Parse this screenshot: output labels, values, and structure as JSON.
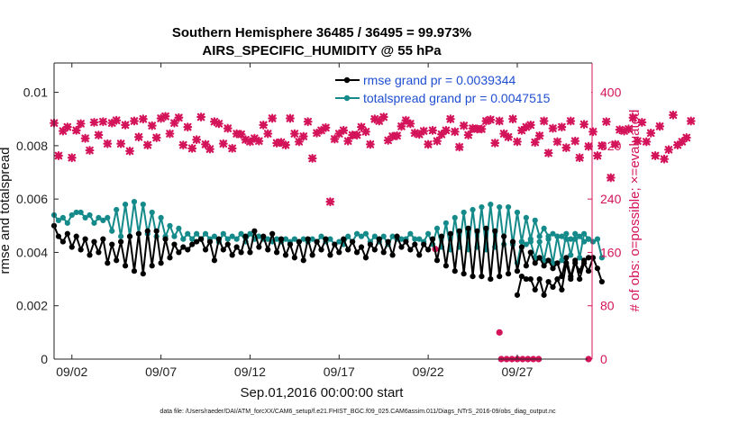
{
  "chart_data": {
    "type": "line",
    "title": "Southern Hemisphere 36485 / 36495 = 99.973%",
    "subtitle": "AIRS_SPECIFIC_HUMIDITY @ 55 hPa",
    "xlabel": "Sep.01,2016 00:00:00 start",
    "ylabel": "rmse and totalspread",
    "ylabel_right": "# of obs: o=possible; ×=evaluated",
    "footnote": "data file: /Users/raeder/DAI/ATM_forcXX/CAM6_setup/f.e21.FHIST_BGC.f09_025.CAM6assim.011/Diags_NTrS_2016-09/obs_diag_output.nc",
    "xlim": [
      1,
      31.2
    ],
    "ylim": [
      0,
      0.0111
    ],
    "ylim_right": [
      0,
      444
    ],
    "x_ticks": [
      2,
      7,
      12,
      17,
      22,
      27
    ],
    "x_tick_labels": [
      "09/02",
      "09/07",
      "09/12",
      "09/17",
      "09/22",
      "09/27"
    ],
    "y_ticks": [
      0,
      0.002,
      0.004,
      0.006,
      0.008,
      0.01
    ],
    "y_tick_labels": [
      "0",
      "0.002",
      "0.004",
      "0.006",
      "0.008",
      "0.01"
    ],
    "y_right_ticks": [
      0,
      80,
      160,
      240,
      320,
      400
    ],
    "y_right_tick_labels": [
      "0",
      "80",
      "160",
      "240",
      "320",
      "400"
    ],
    "legend": [
      "rmse grand pr = 0.0039344",
      "totalspread grand pr = 0.0047515"
    ],
    "legend_placement": "top-right",
    "grid": false,
    "series": [
      {
        "name": "rmse grand pr = 0.0039344",
        "color": "#000000",
        "axis": "left",
        "segments": [
          {
            "x_start": 1.0,
            "dx": 0.25,
            "values": [
              0.005,
              0.0046,
              0.0044,
              0.0047,
              0.0042,
              0.0046,
              0.0041,
              0.0045,
              0.0039,
              0.0044,
              0.004,
              0.0045,
              0.0036,
              0.0043,
              0.0037,
              0.0044,
              0.0035,
              0.0046,
              0.0033,
              0.0047,
              0.0032,
              0.0048,
              0.0035,
              0.0048,
              0.0036,
              0.0045,
              0.0038,
              0.0043,
              0.004,
              0.0042,
              0.0041,
              0.0043,
              0.0044,
              0.0045,
              0.0041,
              0.0044,
              0.0037,
              0.0045,
              0.0041,
              0.0043,
              0.0039,
              0.0042,
              0.004,
              0.0046,
              0.004,
              0.0048,
              0.0042,
              0.0046,
              0.0041,
              0.0047,
              0.004,
              0.0045,
              0.0039,
              0.0043,
              0.0038,
              0.0044,
              0.0037,
              0.0045,
              0.0039,
              0.0044,
              0.0041,
              0.0045,
              0.0039,
              0.0043,
              0.004,
              0.0045,
              0.0041,
              0.0044,
              0.004,
              0.0042,
              0.0038,
              0.0043,
              0.0041,
              0.0045,
              0.004,
              0.0044,
              0.0039,
              0.0046,
              0.0042,
              0.0044,
              0.0041,
              0.0043,
              0.0039,
              0.0043,
              0.0041,
              0.0045,
              0.0037,
              0.0046,
              0.0035,
              0.0047,
              0.0033,
              0.0048,
              0.0032,
              0.0049,
              0.0031,
              0.0048,
              0.0031,
              0.0049,
              0.003,
              0.0048,
              0.0031,
              0.0046,
              0.0032,
              0.0044,
              0.0033,
              0.0042,
              0.0035,
              0.004,
              0.0036,
              0.0038,
              0.0035,
              0.0037,
              0.0034,
              0.0036,
              0.0031,
              0.0038,
              0.0031,
              0.0037,
              0.003,
              0.0036,
              0.0033,
              0.0038,
              0.0034,
              0.0029
            ]
          },
          {
            "x_start": 27.0,
            "dx": 0.25,
            "values": [
              0.0024,
              0.0031,
              0.003,
              0.003,
              0.0026,
              0.003,
              0.0024,
              0.0029,
              0.0027,
              0.003,
              0.0026,
              0.0036,
              0.003,
              0.0036,
              0.0033,
              0.0037,
              0.0038
            ]
          }
        ]
      },
      {
        "name": "totalspread grand pr = 0.0047515",
        "color": "#148a8a",
        "axis": "left",
        "segments": [
          {
            "x_start": 1.0,
            "dx": 0.25,
            "values": [
              0.0054,
              0.0052,
              0.0053,
              0.0051,
              0.0054,
              0.0055,
              0.0055,
              0.0053,
              0.0054,
              0.0051,
              0.0053,
              0.0052,
              0.0053,
              0.0048,
              0.0056,
              0.0046,
              0.0058,
              0.0046,
              0.0059,
              0.0047,
              0.0058,
              0.0047,
              0.0055,
              0.0046,
              0.0053,
              0.0046,
              0.005,
              0.0046,
              0.0049,
              0.0045,
              0.0047,
              0.0045,
              0.0047,
              0.0045,
              0.0047,
              0.0045,
              0.0046,
              0.0044,
              0.0047,
              0.0045,
              0.0046,
              0.0045,
              0.0047,
              0.0044,
              0.0047,
              0.0045,
              0.0046,
              0.0045,
              0.0045,
              0.0044,
              0.0045,
              0.0044,
              0.0045,
              0.0044,
              0.0045,
              0.0044,
              0.0045,
              0.0044,
              0.0045,
              0.0044,
              0.0046,
              0.0044,
              0.0045,
              0.0043,
              0.0044,
              0.0043,
              0.0046,
              0.0044,
              0.0047,
              0.0046,
              0.0047,
              0.0044,
              0.0046,
              0.0044,
              0.0046,
              0.0043,
              0.0046,
              0.0045,
              0.0045,
              0.0045,
              0.0047,
              0.0045,
              0.0045,
              0.0044,
              0.0047,
              0.0043,
              0.0049,
              0.0042,
              0.0051,
              0.0041,
              0.0053,
              0.0042,
              0.0055,
              0.0041,
              0.0056,
              0.0042,
              0.0057,
              0.0041,
              0.0058,
              0.0042,
              0.0057,
              0.0043,
              0.0057,
              0.0043,
              0.0055,
              0.0044,
              0.0053,
              0.0045,
              0.0052,
              0.0046,
              0.0049,
              0.0046,
              0.0047,
              0.0046,
              0.0046,
              0.0045,
              0.0045,
              0.0045,
              0.0046,
              0.0044,
              0.0045,
              0.0044,
              0.0045,
              0.0038
            ]
          },
          {
            "x_start": 27.0,
            "dx": 0.25,
            "values": [
              0.0036,
              0.0044,
              0.0043,
              0.0044,
              0.0038,
              0.0044,
              0.0037,
              0.0045,
              0.0036,
              0.0046,
              0.0037,
              0.0047,
              0.0039,
              0.0047,
              0.0038,
              0.0047,
              0.0045
            ]
          }
        ]
      },
      {
        "name": "evaluated obs count",
        "color": "#d4145a",
        "axis": "right",
        "marker": "x",
        "segments": [
          {
            "x_start": 1.0,
            "dx": 0.25,
            "values": [
              354,
              305,
              342,
              348,
              302,
              343,
              353,
              331,
              313,
              355,
              336,
              356,
              323,
              354,
              358,
              323,
              351,
              312,
              357,
              333,
              360,
              321,
              350,
              332,
              361,
              364,
              338,
              354,
              362,
              321,
              348,
              316,
              329,
              363,
              322,
              315,
              356,
              353,
              323,
              346,
              316,
              338,
              337,
              329,
              326,
              331,
              327,
              351,
              338,
              361,
              324,
              325,
              321,
              361,
              338,
              326,
              334,
              356,
              301,
              339,
              343,
              347,
              236,
              330,
              338,
              343,
              327,
              336,
              336,
              348,
              341,
              322,
              360,
              357,
              363,
              328,
              334,
              335,
              349,
              358,
              353,
              339,
              337,
              342,
              322,
              343,
              327,
              337,
              343,
              360,
              341,
              318,
              350,
              336,
              346,
              345,
              345,
              357,
              359,
              324,
              357,
              338,
              333,
              360,
              326,
              343,
              348,
              351,
              325,
              335,
              357,
              309,
              346,
              326,
              348,
              317,
              357,
              327,
              302,
              352,
              319,
              341,
              305,
              320,
              356,
              272,
              322,
              344,
              342,
              345,
              362,
              327,
              355,
              326,
              339,
              305,
              349,
              300,
              314,
              366,
              321,
              326,
              332,
              357
            ]
          }
        ]
      },
      {
        "name": "possible obs count",
        "color": "#d4145a",
        "axis": "right",
        "marker": "o",
        "points": [
          [
            22.4,
            165
          ],
          [
            26.0,
            40
          ],
          [
            26.1,
            0
          ],
          [
            26.4,
            0
          ],
          [
            26.7,
            0
          ],
          [
            27.0,
            0
          ],
          [
            27.3,
            0
          ],
          [
            27.6,
            0
          ],
          [
            27.9,
            0
          ],
          [
            28.2,
            0
          ],
          [
            31.0,
            0
          ]
        ]
      }
    ]
  }
}
